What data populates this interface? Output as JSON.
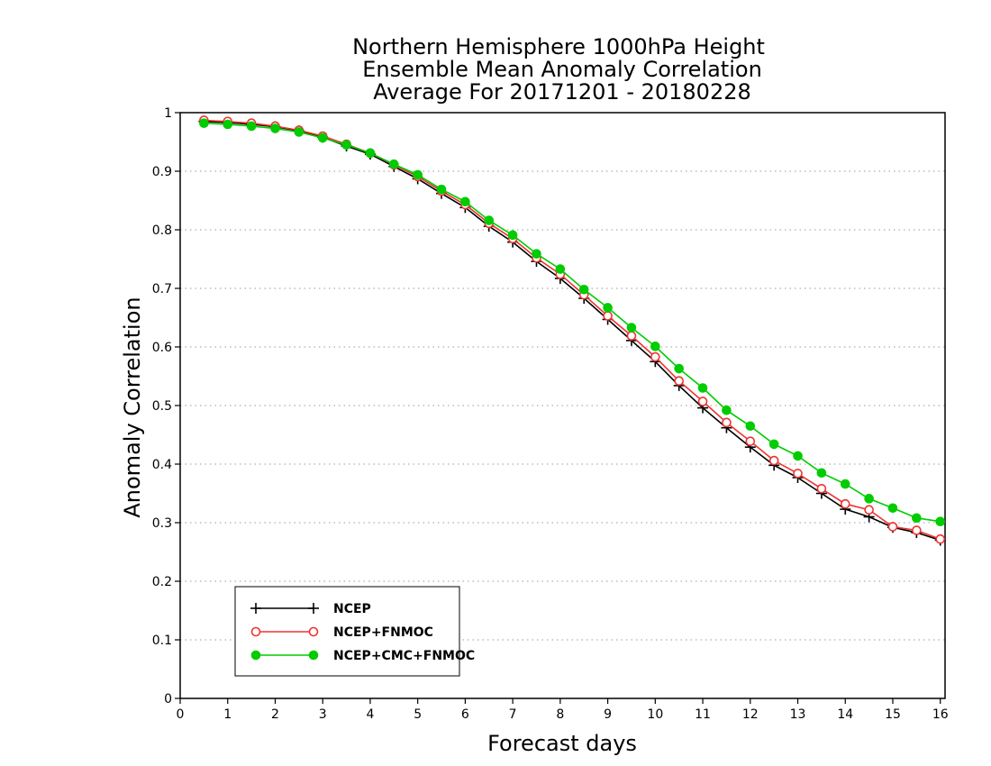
{
  "chart_data": {
    "type": "line",
    "title": [
      "Northern Hemisphere 1000hPa Height",
      "Ensemble Mean Anomaly Correlation",
      "Average For 20171201 - 20180228"
    ],
    "xlabel": "Forecast days",
    "ylabel": "Anomaly Correlation",
    "xlim": [
      0,
      16.1
    ],
    "ylim": [
      0,
      1
    ],
    "xticks": [
      0,
      1,
      2,
      3,
      4,
      5,
      6,
      7,
      8,
      9,
      10,
      11,
      12,
      13,
      14,
      15,
      16
    ],
    "yticks": [
      0,
      0.1,
      0.2,
      0.3,
      0.4,
      0.5,
      0.6,
      0.7,
      0.8,
      0.9,
      1
    ],
    "ytick_labels": [
      "0",
      "0.1",
      "0.2",
      "0.3",
      "0.4",
      "0.5",
      "0.6",
      "0.7",
      "0.8",
      "0.9",
      "1"
    ],
    "grid": "horizontal dotted",
    "legend_position": "bottom-left",
    "x": [
      0.5,
      1,
      1.5,
      2,
      2.5,
      3,
      3.5,
      4,
      4.5,
      5,
      5.5,
      6,
      6.5,
      7,
      7.5,
      8,
      8.5,
      9,
      9.5,
      10,
      10.5,
      11,
      11.5,
      12,
      12.5,
      13,
      13.5,
      14,
      14.5,
      15,
      15.5,
      16
    ],
    "series": [
      {
        "name": "NCEP",
        "color": "#000000",
        "marker": "plus",
        "values": [
          0.985,
          0.983,
          0.98,
          0.976,
          0.969,
          0.958,
          0.943,
          0.929,
          0.908,
          0.887,
          0.862,
          0.838,
          0.806,
          0.779,
          0.746,
          0.717,
          0.683,
          0.647,
          0.611,
          0.575,
          0.534,
          0.496,
          0.462,
          0.429,
          0.398,
          0.377,
          0.35,
          0.323,
          0.31,
          0.292,
          0.283,
          0.27
        ]
      },
      {
        "name": "NCEP+FNMOC",
        "color": "#ee3333",
        "marker": "open-circle",
        "values": [
          0.987,
          0.985,
          0.982,
          0.977,
          0.97,
          0.96,
          0.946,
          0.931,
          0.911,
          0.891,
          0.866,
          0.843,
          0.811,
          0.785,
          0.752,
          0.724,
          0.689,
          0.653,
          0.619,
          0.583,
          0.542,
          0.507,
          0.471,
          0.439,
          0.406,
          0.384,
          0.358,
          0.332,
          0.322,
          0.293,
          0.287,
          0.272
        ]
      },
      {
        "name": "NCEP+CMC+FNMOC",
        "color": "#00cc00",
        "marker": "filled-circle",
        "values": [
          0.982,
          0.98,
          0.977,
          0.973,
          0.967,
          0.957,
          0.945,
          0.931,
          0.912,
          0.894,
          0.869,
          0.848,
          0.816,
          0.791,
          0.759,
          0.733,
          0.698,
          0.667,
          0.633,
          0.601,
          0.563,
          0.53,
          0.492,
          0.465,
          0.434,
          0.414,
          0.385,
          0.366,
          0.341,
          0.325,
          0.308,
          0.302
        ]
      }
    ]
  }
}
